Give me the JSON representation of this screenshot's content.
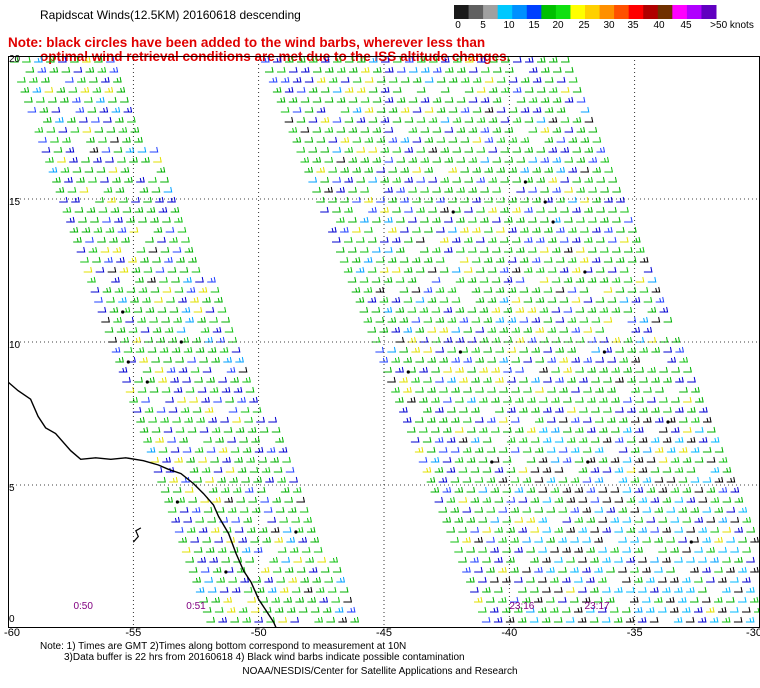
{
  "title": "Rapidscat Winds(12.5KM) 20160618 descending",
  "note_line1": "Note: black circles have been added to the wind barbs, wherever less than",
  "note_line2": "optimal wind retrieval conditions are met due to the ISS altitude changes.",
  "colorbar": {
    "labels": [
      "0",
      "5",
      "10",
      "15",
      "20",
      "25",
      "30",
      "35",
      "40",
      "45",
      ">50 knots"
    ],
    "colors": [
      "#1a1a1a",
      "#606060",
      "#a0a0a0",
      "#00c8ff",
      "#0090ff",
      "#0040ff",
      "#00c000",
      "#10e010",
      "#ffff00",
      "#ffd000",
      "#ff9000",
      "#ff5000",
      "#ff0000",
      "#b00000",
      "#703000",
      "#ff00ff",
      "#b000ff",
      "#6000c0"
    ]
  },
  "y_axis": {
    "ticks": [
      "20",
      "15",
      "10",
      "5",
      "0"
    ],
    "values": [
      20,
      15,
      10,
      5,
      0
    ]
  },
  "x_axis": {
    "ticks": [
      "-60",
      "-55",
      "-50",
      "-45",
      "-40",
      "-35",
      "-30"
    ],
    "values": [
      -60,
      -55,
      -50,
      -45,
      -40,
      -35,
      -30
    ]
  },
  "pass_times": [
    {
      "label": "0:50",
      "lon": -57.0
    },
    {
      "label": "0:51",
      "lon": -52.5
    },
    {
      "label": "23:16",
      "lon": -39.5
    },
    {
      "label": "23:17",
      "lon": -36.5
    }
  ],
  "footer_line1": "Note: 1) Times are GMT 2)Times along bottom correspond to measurement at 10N",
  "footer_line2": "3)Data buffer is 22 hrs from 20160618 4) Black wind barbs indicate possible contamination",
  "footer_credit": "NOAA/NESDIS/Center for Satellite Applications and Research",
  "map_extent": {
    "lon": [
      -60,
      -30
    ],
    "lat": [
      0,
      20
    ]
  },
  "swaths": [
    {
      "name": "western",
      "lon_top": [
        -60,
        -56
      ],
      "lon_bottom": [
        -52,
        -46
      ]
    },
    {
      "name": "eastern",
      "lon_top": [
        -50,
        -38
      ],
      "lon_bottom": [
        -41,
        -29
      ]
    }
  ],
  "grid": "dotted",
  "coastline_color": "#000000"
}
